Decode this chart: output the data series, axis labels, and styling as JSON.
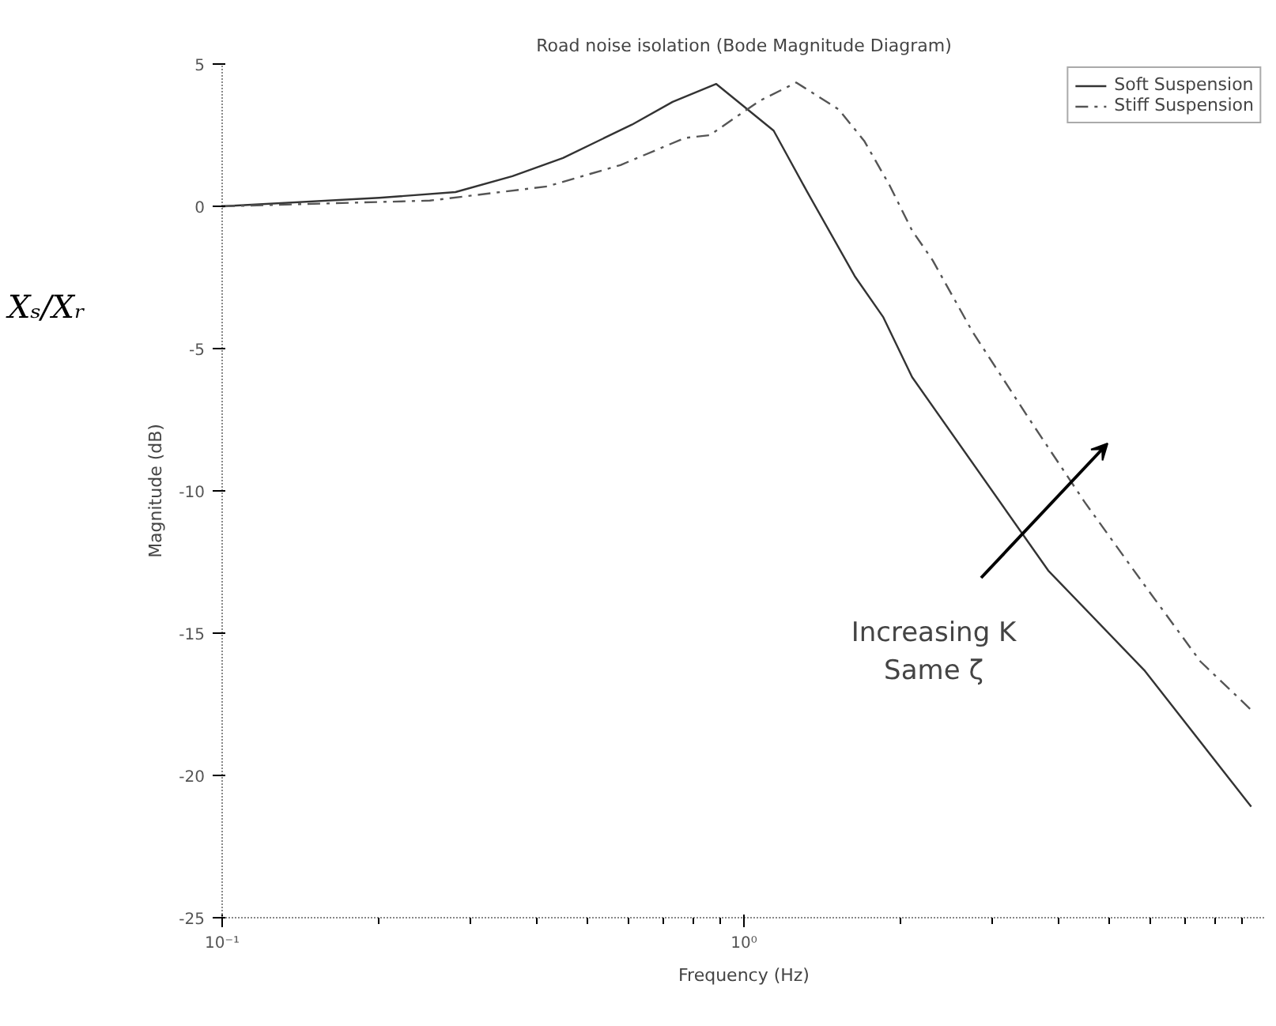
{
  "chart_data": {
    "type": "line",
    "title": "Road noise isolation (Bode Magnitude Diagram)",
    "xlabel": "Frequency (Hz)",
    "ylabel": "Magnitude (dB)",
    "log": "x",
    "xlim": [
      0.1,
      10
    ],
    "xticks": [
      {
        "value": 0.1,
        "label": "10⁻¹"
      },
      {
        "value": 1,
        "label": "10⁰"
      }
    ],
    "ylim": [
      -25,
      5
    ],
    "yticks": [
      -25,
      -20,
      -15,
      -10,
      -5,
      0,
      5
    ],
    "grid": false,
    "legend": "top right",
    "annotations": [
      "Xₛ/Xᵣ",
      "Increasing K\nSame ζ"
    ],
    "series": [
      {
        "name": "Soft Suspension",
        "color": "#333333",
        "line_style": "solid",
        "x": [
          0.1,
          0.2,
          0.28,
          0.36,
          0.45,
          0.61,
          0.73,
          0.885,
          1.14,
          1.32,
          1.63,
          1.85,
          2.1,
          3.83,
          5.85,
          9.38
        ],
        "values": [
          0,
          0.3,
          0.5,
          1.06,
          1.7,
          2.87,
          3.67,
          4.3,
          2.66,
          0.53,
          -2.45,
          -3.9,
          -6.0,
          -12.8,
          -16.3,
          -21.1
        ]
      },
      {
        "name": "Stiff Suspension",
        "color": "#555555",
        "line_style": "dashed",
        "x": [
          0.1,
          0.25,
          0.42,
          0.58,
          0.77,
          0.86,
          1.07,
          1.26,
          1.52,
          1.7,
          1.9,
          2.1,
          2.3,
          2.74,
          3.5,
          4.5,
          5.85,
          7.5,
          9.38
        ],
        "values": [
          0,
          0.2,
          0.7,
          1.45,
          2.4,
          2.5,
          3.7,
          4.35,
          3.4,
          2.3,
          0.75,
          -0.85,
          -1.9,
          -4.4,
          -7.4,
          -10.4,
          -13.3,
          -16.0,
          -17.7
        ]
      }
    ]
  }
}
